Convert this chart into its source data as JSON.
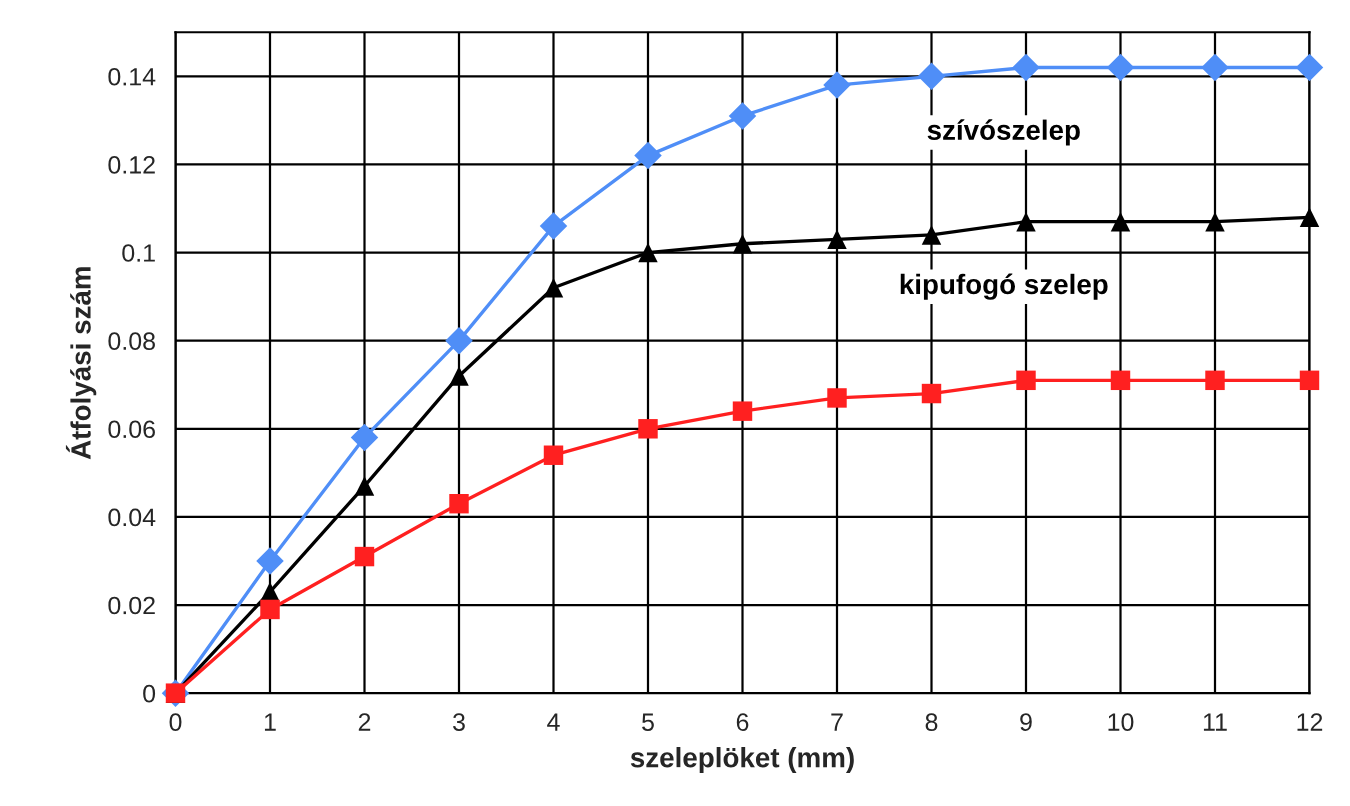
{
  "chart_data": {
    "type": "line",
    "xlabel": "szeleplöket (mm)",
    "ylabel": "Átfolyási szám",
    "x": [
      0,
      1,
      2,
      3,
      4,
      5,
      6,
      7,
      8,
      9,
      10,
      11,
      12
    ],
    "series": [
      {
        "name": "szívószelep",
        "color": "#4f8ef7",
        "marker": "diamond",
        "values": [
          0,
          0.03,
          0.058,
          0.08,
          0.106,
          0.122,
          0.131,
          0.138,
          0.14,
          0.142,
          0.142,
          0.142,
          0.142
        ]
      },
      {
        "name": "kipufogó szelep",
        "color": "#000000",
        "marker": "triangle",
        "values": [
          0,
          0.023,
          0.047,
          0.072,
          0.092,
          0.1,
          0.102,
          0.103,
          0.104,
          0.107,
          0.107,
          0.107,
          0.108
        ]
      },
      {
        "color": "#ff2020",
        "marker": "square",
        "values": [
          0,
          0.019,
          0.031,
          0.043,
          0.054,
          0.06,
          0.064,
          0.067,
          0.068,
          0.071,
          0.071,
          0.071,
          0.071
        ]
      }
    ],
    "xlim": [
      0,
      12
    ],
    "ylim": [
      0,
      0.15
    ],
    "xticks": [
      0,
      1,
      2,
      3,
      4,
      5,
      6,
      7,
      8,
      9,
      10,
      11,
      12
    ],
    "yticks": [
      0,
      0.02,
      0.04,
      0.06,
      0.08,
      {
        "value": 0.1,
        "label": "0.1"
      },
      0.12,
      0.14
    ],
    "grid": true,
    "line_style": "solid"
  }
}
